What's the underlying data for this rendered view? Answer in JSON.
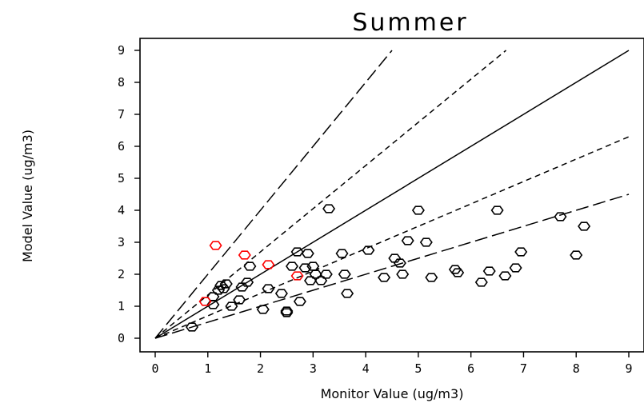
{
  "chart_data": {
    "type": "scatter",
    "title": "Summer",
    "xlabel": "Monitor Value (ug/m3)",
    "ylabel": "Model Value (ug/m3)",
    "xlim": [
      0,
      9
    ],
    "ylim": [
      0,
      9
    ],
    "xticks": [
      "0",
      "1",
      "2",
      "3",
      "4",
      "5",
      "6",
      "7",
      "8",
      "9"
    ],
    "yticks": [
      "0",
      "1",
      "2",
      "3",
      "4",
      "5",
      "6",
      "7",
      "8",
      "9"
    ],
    "grid": false,
    "reference_lines": [
      {
        "slope": 2,
        "style": "long-dash"
      },
      {
        "slope": 1.35,
        "style": "short-dash"
      },
      {
        "slope": 1,
        "style": "solid"
      },
      {
        "slope": 0.7,
        "style": "short-dash"
      },
      {
        "slope": 0.5,
        "style": "long-dash"
      }
    ],
    "series": [
      {
        "color": "#000000",
        "points": [
          [
            0.7,
            0.35
          ],
          [
            1.1,
            1.05
          ],
          [
            1.1,
            1.3
          ],
          [
            1.2,
            1.5
          ],
          [
            1.25,
            1.65
          ],
          [
            1.3,
            1.55
          ],
          [
            1.35,
            1.7
          ],
          [
            1.45,
            1.0
          ],
          [
            1.6,
            1.2
          ],
          [
            1.65,
            1.6
          ],
          [
            1.75,
            1.75
          ],
          [
            1.8,
            2.25
          ],
          [
            2.05,
            0.9
          ],
          [
            2.15,
            1.55
          ],
          [
            2.4,
            1.4
          ],
          [
            2.5,
            0.8
          ],
          [
            2.5,
            0.85
          ],
          [
            2.6,
            2.25
          ],
          [
            2.7,
            2.7
          ],
          [
            2.75,
            1.15
          ],
          [
            2.85,
            2.2
          ],
          [
            2.9,
            2.65
          ],
          [
            2.95,
            1.8
          ],
          [
            3.0,
            2.25
          ],
          [
            3.05,
            2.0
          ],
          [
            3.15,
            1.8
          ],
          [
            3.25,
            2.0
          ],
          [
            3.3,
            4.05
          ],
          [
            3.55,
            2.65
          ],
          [
            3.6,
            2.0
          ],
          [
            3.65,
            1.4
          ],
          [
            4.05,
            2.75
          ],
          [
            4.35,
            1.9
          ],
          [
            4.55,
            2.5
          ],
          [
            4.65,
            2.35
          ],
          [
            4.7,
            2.0
          ],
          [
            4.8,
            3.05
          ],
          [
            5.0,
            4.0
          ],
          [
            5.15,
            3.0
          ],
          [
            5.25,
            1.9
          ],
          [
            5.7,
            2.15
          ],
          [
            5.75,
            2.05
          ],
          [
            6.2,
            1.75
          ],
          [
            6.35,
            2.1
          ],
          [
            6.5,
            4.0
          ],
          [
            6.65,
            1.95
          ],
          [
            6.85,
            2.2
          ],
          [
            6.95,
            2.7
          ],
          [
            7.7,
            3.8
          ],
          [
            8.0,
            2.6
          ],
          [
            8.15,
            3.5
          ]
        ]
      },
      {
        "color": "#ff0000",
        "points": [
          [
            0.95,
            1.15
          ],
          [
            1.15,
            2.9
          ],
          [
            1.7,
            2.6
          ],
          [
            2.15,
            2.3
          ],
          [
            2.7,
            1.95
          ]
        ]
      }
    ]
  }
}
